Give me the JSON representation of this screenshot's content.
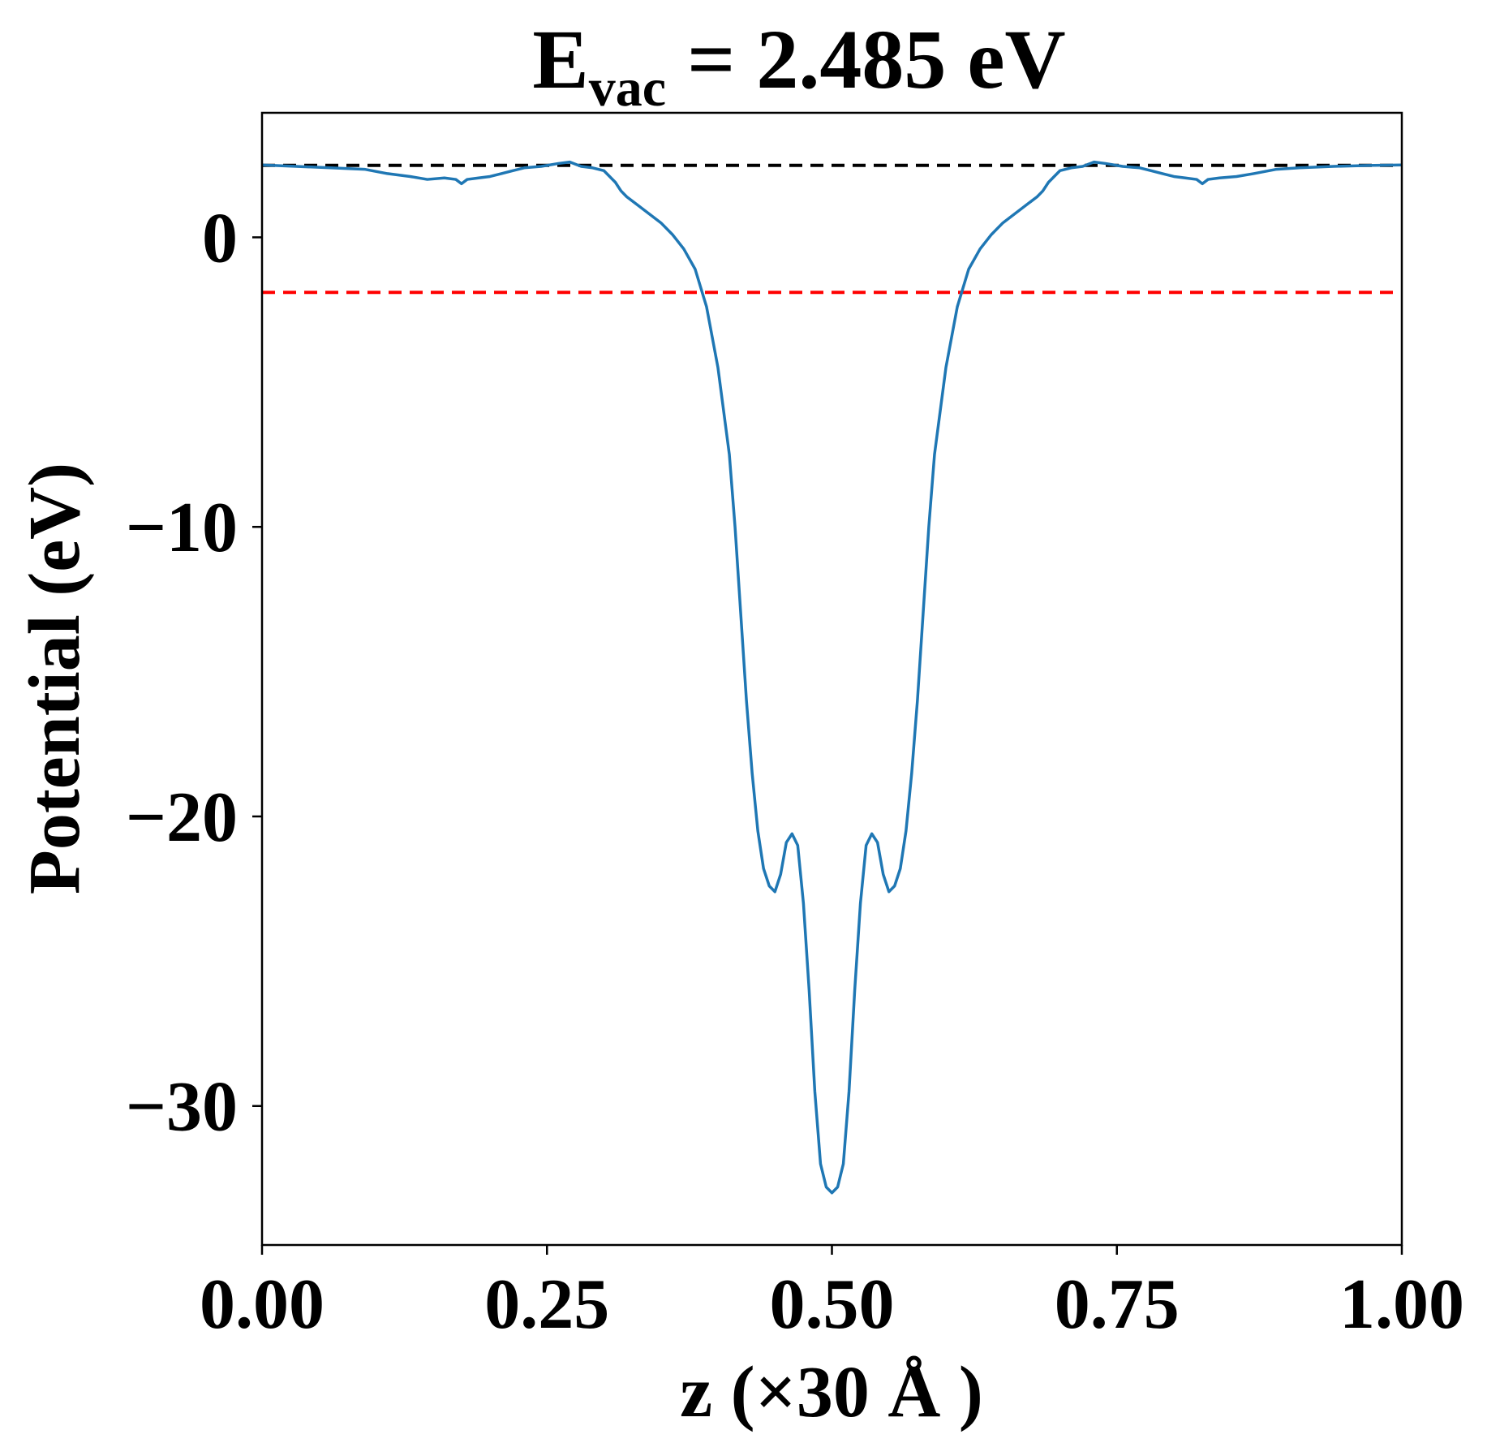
{
  "chart_data": {
    "type": "line",
    "title": {
      "main": "E",
      "sub": "vac",
      "rest": " = 2.485 eV"
    },
    "xlabel": "z (×30 Å )",
    "ylabel": "Potential (eV)",
    "xlim": [
      0,
      1
    ],
    "ylim": [
      -34.8,
      4.3
    ],
    "x_ticks": [
      0.0,
      0.25,
      0.5,
      0.75,
      1.0
    ],
    "x_tick_labels": [
      "0.00",
      "0.25",
      "0.50",
      "0.75",
      "1.00"
    ],
    "y_ticks": [
      0,
      -10,
      -20,
      -30
    ],
    "y_tick_labels": [
      "0",
      "−10",
      "−20",
      "−30"
    ],
    "grid": false,
    "colors": {
      "series": "#1f77b4",
      "vacuum_line": "#000000",
      "fermi_line": "#ff0000"
    },
    "reference_lines": [
      {
        "y": 2.485,
        "style": "dashed",
        "color": "#000000"
      },
      {
        "y": -1.9,
        "style": "dashed",
        "color": "#ff0000"
      }
    ],
    "series": [
      {
        "x": [
          0.0,
          0.03,
          0.06,
          0.09,
          0.11,
          0.13,
          0.145,
          0.16,
          0.17,
          0.175,
          0.18,
          0.19,
          0.2,
          0.21,
          0.22,
          0.23,
          0.245,
          0.26,
          0.27,
          0.28,
          0.29,
          0.3,
          0.305,
          0.31,
          0.315,
          0.32,
          0.33,
          0.34,
          0.35,
          0.36,
          0.37,
          0.38,
          0.39,
          0.4,
          0.41,
          0.415,
          0.42,
          0.425,
          0.43,
          0.435,
          0.44,
          0.445,
          0.45,
          0.455,
          0.46,
          0.465,
          0.47,
          0.475,
          0.48,
          0.485,
          0.49,
          0.495,
          0.5,
          0.505,
          0.51,
          0.515,
          0.52,
          0.525,
          0.53,
          0.535,
          0.54,
          0.545,
          0.55,
          0.555,
          0.56,
          0.565,
          0.57,
          0.575,
          0.58,
          0.585,
          0.59,
          0.6,
          0.61,
          0.62,
          0.63,
          0.64,
          0.65,
          0.66,
          0.67,
          0.68,
          0.685,
          0.69,
          0.695,
          0.7,
          0.71,
          0.72,
          0.73,
          0.74,
          0.755,
          0.77,
          0.78,
          0.79,
          0.8,
          0.81,
          0.82,
          0.825,
          0.83,
          0.84,
          0.855,
          0.87,
          0.89,
          0.91,
          0.94,
          0.97,
          1.0
        ],
        "y": [
          2.5,
          2.45,
          2.4,
          2.35,
          2.2,
          2.1,
          2.0,
          2.05,
          2.0,
          1.85,
          2.0,
          2.05,
          2.1,
          2.2,
          2.3,
          2.4,
          2.45,
          2.55,
          2.6,
          2.45,
          2.4,
          2.3,
          2.1,
          1.9,
          1.6,
          1.4,
          1.1,
          0.8,
          0.5,
          0.1,
          -0.4,
          -1.1,
          -2.4,
          -4.5,
          -7.5,
          -10.0,
          -13.0,
          -16.0,
          -18.5,
          -20.5,
          -21.8,
          -22.4,
          -22.6,
          -22.0,
          -20.9,
          -20.6,
          -21.0,
          -23.0,
          -26.0,
          -29.5,
          -32.0,
          -32.8,
          -33.0,
          -32.8,
          -32.0,
          -29.5,
          -26.0,
          -23.0,
          -21.0,
          -20.6,
          -20.9,
          -22.0,
          -22.6,
          -22.4,
          -21.8,
          -20.5,
          -18.5,
          -16.0,
          -13.0,
          -10.0,
          -7.5,
          -4.5,
          -2.4,
          -1.1,
          -0.4,
          0.1,
          0.5,
          0.8,
          1.1,
          1.4,
          1.6,
          1.9,
          2.1,
          2.3,
          2.4,
          2.45,
          2.6,
          2.55,
          2.45,
          2.4,
          2.3,
          2.2,
          2.1,
          2.05,
          2.0,
          1.85,
          2.0,
          2.05,
          2.1,
          2.2,
          2.35,
          2.4,
          2.45,
          2.48,
          2.5
        ]
      }
    ]
  }
}
